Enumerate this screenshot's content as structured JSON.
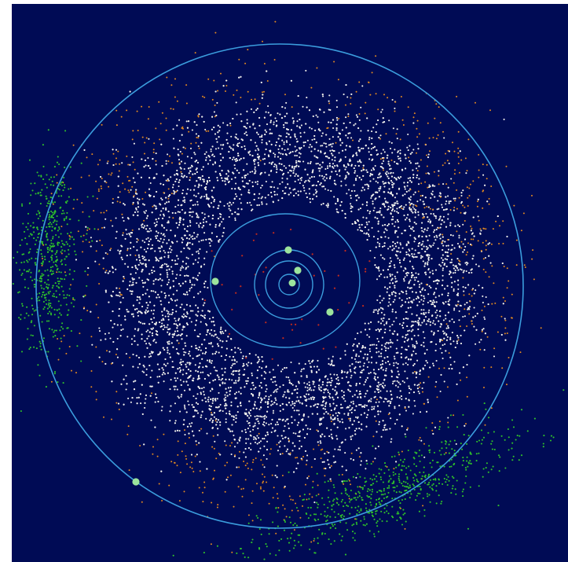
{
  "diagram": {
    "type": "inner-solar-system-asteroid-plot",
    "colors": {
      "page_background": "#ffffff",
      "space_background": "#000b55",
      "orbit_line": "#3b9ddd",
      "planet": "#9ce49c",
      "sun": "#9ce49c",
      "main_belt_asteroid": "#f1f1ec",
      "hilda_asteroid": "#e38a1f",
      "trojan_asteroid": "#2fc22a",
      "near_earth_asteroid": "#c42a1c"
    },
    "orbits": [
      {
        "name": "mercury",
        "planet_angle_deg": 0
      },
      {
        "name": "venus",
        "planet_angle_deg": 275
      },
      {
        "name": "earth",
        "planet_angle_deg": 312
      },
      {
        "name": "mars",
        "planet_angle_deg": 180
      },
      {
        "name": "mars-second-position",
        "planet_angle_deg": 42
      },
      {
        "name": "jupiter",
        "planet_angle_deg": 145
      }
    ],
    "populations": [
      {
        "name": "main-belt",
        "color_key": "main_belt_asteroid"
      },
      {
        "name": "hilda",
        "color_key": "hilda_asteroid"
      },
      {
        "name": "trojans-leading",
        "color_key": "trojan_asteroid"
      },
      {
        "name": "trojans-trailing",
        "color_key": "trojan_asteroid"
      },
      {
        "name": "near-earth",
        "color_key": "near_earth_asteroid"
      }
    ]
  }
}
